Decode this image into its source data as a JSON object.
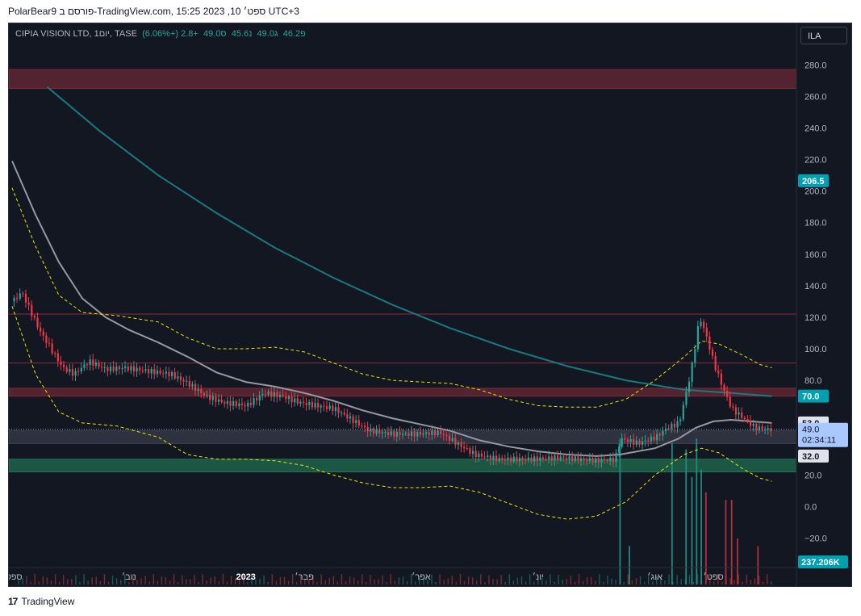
{
  "topline": "PolarBear9 פורסם ב-TradingView.com, ספט׳ 10, 2023 15:25 UTC+3",
  "header": {
    "symbol": "CIPIA VISION LTD, 1יום, TASE",
    "o_label": "פ",
    "o_value": "46.2",
    "h_label": "ג",
    "h_value": "49.0",
    "l_label": "נ",
    "l_value": "45.6",
    "c_label": "ס",
    "c_value": "49.0",
    "change": "+2.8 (+6.06%)"
  },
  "ila_button": "ILA",
  "footer": {
    "brand": "TradingView",
    "logo_text": "17"
  },
  "colors": {
    "background": "#131722",
    "up": "#26a69a",
    "down": "#f23645",
    "ma_long": "#187a80",
    "ma_short": "#9598a1",
    "band": "#e6e600",
    "zone_red": "#5a2631",
    "zone_green": "#1e5e48",
    "grid_text": "#b2b5be"
  },
  "chart_data": {
    "type": "candlestick",
    "symbol": "CIPIA VISION LTD",
    "interval": "1יום",
    "exchange": "TASE",
    "y_ticks": [
      "280.0",
      "260.0",
      "240.0",
      "220.0",
      "200.0",
      "180.0",
      "160.0",
      "140.0",
      "120.0",
      "100.0",
      "80.0",
      "20.0",
      "0.0",
      "−20.0"
    ],
    "ylim": [
      -32,
      296
    ],
    "x_tick_labels": [
      "ספט׳",
      "נוב׳",
      "2023",
      "פבר׳",
      "אפר׳",
      "יונ׳",
      "אוג׳",
      "ספט׳"
    ],
    "x_ticks_month_index": [
      0,
      2,
      4,
      5,
      7,
      9,
      11,
      12
    ],
    "months_span": 13.2,
    "price_tags": [
      {
        "label": "206.5",
        "value": 206.5,
        "bg": "#00a0b0",
        "fg": "#ffffff"
      },
      {
        "label": "70.0",
        "value": 70.0,
        "bg": "#00a0b0",
        "fg": "#ffffff"
      },
      {
        "label": "53.0",
        "value": 53.0,
        "bg": "#e0e3eb",
        "fg": "#131722"
      },
      {
        "label": "32.0",
        "value": 32.0,
        "bg": "#e0e3eb",
        "fg": "#131722"
      }
    ],
    "last_price": {
      "value": "49.0",
      "countdown": "02:34:11",
      "price": 49.0
    },
    "volume_tag": "237.206K",
    "zones": [
      {
        "from": 265,
        "to": 277,
        "color": "red"
      },
      {
        "from": 70,
        "to": 75,
        "color": "red"
      },
      {
        "from": 40,
        "to": 48,
        "color": "gray"
      },
      {
        "from": 22,
        "to": 30,
        "color": "green"
      }
    ],
    "hlines": [
      122,
      91
    ],
    "close_path": [
      [
        0.0,
        130
      ],
      [
        0.15,
        136
      ],
      [
        0.25,
        128
      ],
      [
        0.45,
        112
      ],
      [
        0.65,
        100
      ],
      [
        0.85,
        88
      ],
      [
        1.05,
        84
      ],
      [
        1.3,
        92
      ],
      [
        1.6,
        87
      ],
      [
        1.9,
        88
      ],
      [
        2.3,
        86
      ],
      [
        2.7,
        84
      ],
      [
        3.0,
        78
      ],
      [
        3.3,
        70
      ],
      [
        3.6,
        66
      ],
      [
        4.0,
        64
      ],
      [
        4.3,
        72
      ],
      [
        4.6,
        70
      ],
      [
        4.9,
        66
      ],
      [
        5.2,
        64
      ],
      [
        5.5,
        62
      ],
      [
        5.8,
        55
      ],
      [
        6.1,
        48
      ],
      [
        6.5,
        46
      ],
      [
        6.9,
        46
      ],
      [
        7.3,
        47
      ],
      [
        7.6,
        40
      ],
      [
        7.9,
        33
      ],
      [
        8.3,
        30
      ],
      [
        8.8,
        30
      ],
      [
        9.4,
        31
      ],
      [
        10.0,
        29
      ],
      [
        10.3,
        30
      ],
      [
        10.4,
        43
      ],
      [
        10.7,
        40
      ],
      [
        11.0,
        44
      ],
      [
        11.2,
        50
      ],
      [
        11.4,
        53
      ],
      [
        11.6,
        85
      ],
      [
        11.75,
        120
      ],
      [
        11.85,
        110
      ],
      [
        12.0,
        90
      ],
      [
        12.15,
        75
      ],
      [
        12.3,
        62
      ],
      [
        12.5,
        56
      ],
      [
        12.7,
        50
      ],
      [
        12.9,
        49
      ],
      [
        13.0,
        49
      ]
    ],
    "ma_long_path": [
      [
        0.6,
        266
      ],
      [
        1.5,
        238
      ],
      [
        2.5,
        210
      ],
      [
        3.5,
        186
      ],
      [
        4.5,
        164
      ],
      [
        5.5,
        145
      ],
      [
        6.5,
        128
      ],
      [
        7.5,
        113
      ],
      [
        8.5,
        100
      ],
      [
        9.5,
        89
      ],
      [
        10.5,
        80
      ],
      [
        11.5,
        74
      ],
      [
        12.3,
        72
      ],
      [
        13.0,
        70
      ]
    ],
    "ma_short_path": [
      [
        0.0,
        219
      ],
      [
        0.4,
        185
      ],
      [
        0.8,
        155
      ],
      [
        1.2,
        132
      ],
      [
        1.6,
        120
      ],
      [
        2.0,
        112
      ],
      [
        2.5,
        104
      ],
      [
        3.0,
        95
      ],
      [
        3.5,
        85
      ],
      [
        4.0,
        79
      ],
      [
        4.5,
        76
      ],
      [
        5.0,
        72
      ],
      [
        5.5,
        67
      ],
      [
        6.0,
        61
      ],
      [
        6.5,
        56
      ],
      [
        7.0,
        52
      ],
      [
        7.5,
        48
      ],
      [
        8.0,
        42
      ],
      [
        8.5,
        38
      ],
      [
        9.0,
        35
      ],
      [
        9.5,
        33
      ],
      [
        10.0,
        32
      ],
      [
        10.4,
        33
      ],
      [
        11.0,
        37
      ],
      [
        11.4,
        43
      ],
      [
        11.7,
        50
      ],
      [
        12.0,
        54
      ],
      [
        12.3,
        55
      ],
      [
        13.0,
        53
      ]
    ],
    "band_upper_path": [
      [
        0.0,
        202
      ],
      [
        0.4,
        165
      ],
      [
        0.8,
        134
      ],
      [
        1.2,
        123
      ],
      [
        1.8,
        121
      ],
      [
        2.5,
        117
      ],
      [
        3.0,
        107
      ],
      [
        3.5,
        100
      ],
      [
        4.0,
        100
      ],
      [
        4.5,
        101
      ],
      [
        5.0,
        98
      ],
      [
        5.5,
        91
      ],
      [
        6.0,
        84
      ],
      [
        6.5,
        80
      ],
      [
        7.0,
        79
      ],
      [
        7.5,
        78
      ],
      [
        8.0,
        74
      ],
      [
        8.5,
        68
      ],
      [
        9.0,
        64
      ],
      [
        9.5,
        63
      ],
      [
        10.0,
        63
      ],
      [
        10.5,
        68
      ],
      [
        11.0,
        80
      ],
      [
        11.5,
        95
      ],
      [
        11.8,
        105
      ],
      [
        12.1,
        103
      ],
      [
        12.5,
        96
      ],
      [
        12.8,
        90
      ],
      [
        13.0,
        88
      ]
    ],
    "band_lower_path": [
      [
        0.0,
        127
      ],
      [
        0.4,
        84
      ],
      [
        0.8,
        60
      ],
      [
        1.2,
        53
      ],
      [
        1.8,
        51
      ],
      [
        2.5,
        44
      ],
      [
        3.0,
        33
      ],
      [
        3.5,
        30
      ],
      [
        4.0,
        30
      ],
      [
        4.5,
        29
      ],
      [
        5.0,
        26
      ],
      [
        5.5,
        20
      ],
      [
        6.0,
        15
      ],
      [
        6.5,
        12
      ],
      [
        7.0,
        12
      ],
      [
        7.5,
        13
      ],
      [
        8.0,
        9
      ],
      [
        8.5,
        2
      ],
      [
        9.0,
        -5
      ],
      [
        9.5,
        -8
      ],
      [
        10.0,
        -6
      ],
      [
        10.5,
        3
      ],
      [
        11.0,
        20
      ],
      [
        11.5,
        33
      ],
      [
        11.8,
        37
      ],
      [
        12.1,
        34
      ],
      [
        12.5,
        24
      ],
      [
        12.8,
        18
      ],
      [
        13.0,
        16
      ]
    ],
    "volume_spikes": [
      {
        "m": 10.39,
        "v": 0.95
      },
      {
        "m": 11.28,
        "v": 0.92
      },
      {
        "m": 11.52,
        "v": 0.88
      },
      {
        "m": 11.62,
        "v": 0.7
      },
      {
        "m": 11.7,
        "v": 0.95
      },
      {
        "m": 11.78,
        "v": 0.75
      },
      {
        "m": 11.86,
        "v": 0.6
      },
      {
        "m": 12.2,
        "v": 0.55
      },
      {
        "m": 12.3,
        "v": 0.55
      },
      {
        "m": 12.4,
        "v": 0.3
      },
      {
        "m": 10.55,
        "v": 0.25
      },
      {
        "m": 12.75,
        "v": 0.25
      }
    ]
  }
}
